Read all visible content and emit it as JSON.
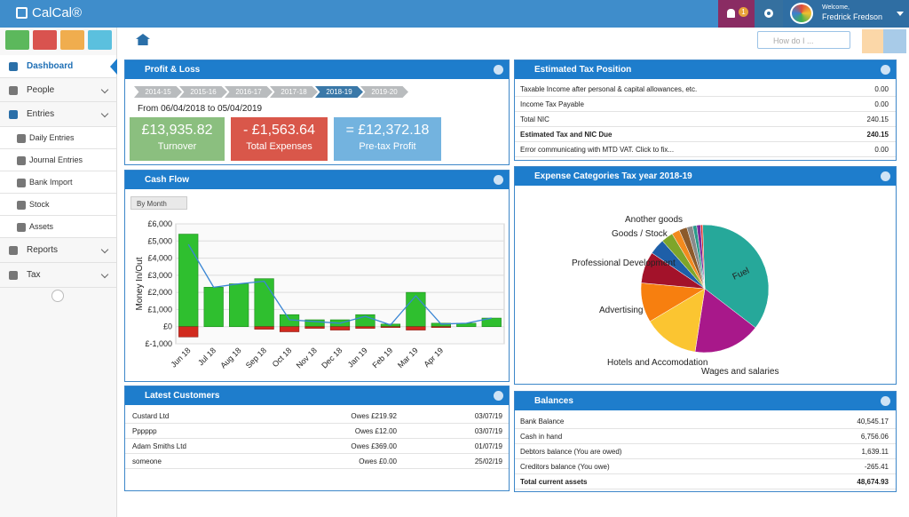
{
  "header": {
    "brand": "CalCal®",
    "notifications": "1",
    "welcome": "Welcome,",
    "user": "Fredrick Fredson",
    "search_placeholder": "How do I ..."
  },
  "sidebar": {
    "items": [
      "Dashboard",
      "People",
      "Entries",
      "Daily Entries",
      "Journal Entries",
      "Bank Import",
      "Stock",
      "Assets",
      "Reports",
      "Tax"
    ]
  },
  "profit_loss": {
    "title": "Profit & Loss",
    "years": [
      "2014-15",
      "2015-16",
      "2016-17",
      "2017-18",
      "2018-19",
      "2019-20"
    ],
    "period": "From 06/04/2018 to 05/04/2019",
    "cards": [
      {
        "value": "£13,935.82",
        "label": "Turnover"
      },
      {
        "value": "- £1,563.64",
        "label": "Total Expenses"
      },
      {
        "value": "= £12,372.18",
        "label": "Pre-tax Profit"
      }
    ]
  },
  "tax_position": {
    "title": "Estimated Tax Position",
    "rows": [
      {
        "label": "Taxable Income after personal & capital allowances, etc.",
        "value": "0.00"
      },
      {
        "label": "Income Tax Payable",
        "value": "0.00"
      },
      {
        "label": "Total NIC",
        "value": "240.15"
      },
      {
        "label": "Estimated Tax and NIC Due",
        "value": "240.15"
      },
      {
        "label": "Error communicating with MTD VAT. Click to fix...",
        "value": "0.00"
      }
    ]
  },
  "customers": {
    "title": "Latest Customers",
    "rows": [
      {
        "name": "Custard Ltd",
        "owes": "Owes £219.92",
        "date": "03/07/19"
      },
      {
        "name": "Pppppp",
        "owes": "Owes £12.00",
        "date": "03/07/19"
      },
      {
        "name": "Adam Smiths Ltd",
        "owes": "Owes £369.00",
        "date": "01/07/19"
      },
      {
        "name": "someone",
        "owes": "Owes £0.00",
        "date": "25/02/19"
      }
    ]
  },
  "balances": {
    "title": "Balances",
    "rows": [
      {
        "label": "Bank Balance",
        "value": "40,545.17"
      },
      {
        "label": "Cash in hand",
        "value": "6,756.06"
      },
      {
        "label": "Debtors balance (You are owed)",
        "value": "1,639.11"
      },
      {
        "label": "Creditors balance (You owe)",
        "value": "-265.41"
      },
      {
        "label": "Total current assets",
        "value": "48,674.93"
      }
    ]
  },
  "chart_data": [
    {
      "type": "bar",
      "title": "Cash Flow",
      "period_selector": "By Month",
      "ylabel": "Money In/Out",
      "categories": [
        "Jun 18",
        "Jul 18",
        "Aug 18",
        "Sep 18",
        "Oct 18",
        "Nov 18",
        "Dec 18",
        "Jan 19",
        "Feb 19",
        "Mar 19",
        "Apr 19",
        null,
        null
      ],
      "series": [
        {
          "color": "#2fbf2f",
          "values": [
            5400,
            2300,
            2500,
            2800,
            700,
            400,
            400,
            700,
            150,
            2000,
            200,
            200,
            500
          ]
        },
        {
          "color": "#d12a1e",
          "values": [
            -600,
            0,
            0,
            -150,
            -300,
            -100,
            -200,
            -100,
            -50,
            -200,
            -50,
            0,
            0
          ]
        },
        {
          "color": "#3a86d4",
          "values": [
            4800,
            2300,
            2500,
            2650,
            400,
            300,
            200,
            600,
            100,
            1800,
            150,
            200,
            500
          ]
        }
      ],
      "ylim": [
        -1000,
        6000
      ],
      "yticks": [
        {
          "value": -1000,
          "label": "£-1,000"
        },
        {
          "value": 0,
          "label": "£0"
        },
        {
          "value": 1000,
          "label": "£1,000"
        },
        {
          "value": 2000,
          "label": "£2,000"
        },
        {
          "value": 3000,
          "label": "£3,000"
        },
        {
          "value": 4000,
          "label": "£4,000"
        },
        {
          "value": 5000,
          "label": "£5,000"
        },
        {
          "value": 6000,
          "label": "£6,000"
        }
      ],
      "grid": true
    },
    {
      "type": "pie",
      "title": "Expense Categories Tax year 2018-19",
      "categories": [
        "Fuel",
        "Wages and salaries",
        "Hotels and Accomodation",
        "Advertising",
        "Professional Development",
        null,
        "Goods / Stock",
        null,
        "Another goods",
        null,
        null,
        null,
        null
      ],
      "values": [
        36,
        17,
        14,
        10,
        8,
        4,
        3,
        2,
        2,
        1.5,
        1,
        1,
        0.5
      ],
      "colors": [
        "#26a89a",
        "#a8188a",
        "#fbc531",
        "#f77f0f",
        "#a3122a",
        "#1e5fa8",
        "#7ea52a",
        "#f28a1e",
        "#8c5a2b",
        "#8a8a8a",
        "#2a9a8a",
        "#7a2a9a",
        "#e0302a"
      ]
    }
  ]
}
